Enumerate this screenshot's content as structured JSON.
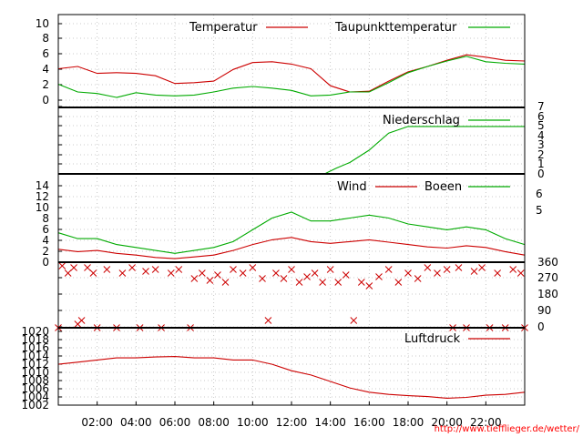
{
  "chart_data": [
    {
      "type": "line",
      "legend": [
        "Temperatur",
        "Taupunkttemperatur"
      ],
      "y_ticks": [
        "0",
        "2",
        "4",
        "6",
        "8",
        "10"
      ],
      "ylim": [
        -1,
        11
      ],
      "x": [
        0,
        1,
        2,
        3,
        4,
        5,
        6,
        7,
        8,
        9,
        10,
        11,
        12,
        13,
        14,
        15,
        16,
        17,
        18,
        19,
        20,
        21,
        22,
        23,
        24
      ],
      "series": [
        {
          "name": "Temperatur",
          "color": "#cc0000",
          "values": [
            4.0,
            4.3,
            3.4,
            3.5,
            3.4,
            3.1,
            2.1,
            2.2,
            2.4,
            3.9,
            4.8,
            4.9,
            4.6,
            4.0,
            1.8,
            1.0,
            1.1,
            2.4,
            3.6,
            4.3,
            5.1,
            5.8,
            5.5,
            5.1,
            5.0
          ]
        },
        {
          "name": "Taupunkttemperatur",
          "color": "#00aa00",
          "values": [
            2.0,
            1.0,
            0.8,
            0.3,
            0.9,
            0.6,
            0.5,
            0.6,
            1.0,
            1.5,
            1.7,
            1.5,
            1.2,
            0.5,
            0.6,
            1.0,
            1.0,
            2.2,
            3.5,
            4.3,
            5.0,
            5.6,
            4.9,
            4.7,
            4.6
          ]
        }
      ]
    },
    {
      "type": "line",
      "legend": [
        "Niederschlag"
      ],
      "y_ticks": [
        "0",
        "1",
        "2",
        "3",
        "4",
        "5",
        "6",
        "7"
      ],
      "ylim": [
        0,
        7
      ],
      "x": [
        0,
        13.7,
        14.3,
        15.0,
        16.0,
        17.0,
        18.0,
        18.5,
        24
      ],
      "series": [
        {
          "name": "Niederschlag",
          "color": "#00aa00",
          "values": [
            0,
            0,
            0.6,
            1.2,
            2.5,
            4.3,
            5.0,
            5.0,
            5.0
          ]
        }
      ]
    },
    {
      "type": "line",
      "legend": [
        "Wind",
        "Boeen"
      ],
      "y_ticks": [
        "0",
        "2",
        "4",
        "6",
        "8",
        "10",
        "12",
        "14"
      ],
      "y_ticks_right": [
        "5",
        "6"
      ],
      "ylim": [
        0,
        15
      ],
      "x": [
        0,
        1,
        2,
        3,
        4,
        5,
        6,
        7,
        8,
        9,
        10,
        11,
        12,
        13,
        14,
        15,
        16,
        17,
        18,
        19,
        20,
        21,
        22,
        23,
        24
      ],
      "series": [
        {
          "name": "Wind",
          "color": "#cc0000",
          "values": [
            2.2,
            1.8,
            2.0,
            1.5,
            1.2,
            0.8,
            0.6,
            0.9,
            1.2,
            2.0,
            3.0,
            3.8,
            4.2,
            3.5,
            3.2,
            3.5,
            3.8,
            3.4,
            3.0,
            2.6,
            2.4,
            2.8,
            2.5,
            1.8,
            1.2
          ]
        },
        {
          "name": "Boeen",
          "color": "#00aa00",
          "values": [
            5.0,
            4.0,
            4.0,
            3.0,
            2.5,
            2.0,
            1.5,
            2.0,
            2.5,
            3.5,
            5.5,
            7.5,
            8.5,
            7.0,
            7.0,
            7.5,
            8.0,
            7.5,
            6.5,
            6.0,
            5.5,
            6.0,
            5.5,
            4.0,
            3.0
          ]
        }
      ]
    },
    {
      "type": "scatter",
      "y_ticks": [
        "0",
        "90",
        "180",
        "270",
        "360"
      ],
      "ylim": [
        0,
        360
      ],
      "color": "#cc0000",
      "points": [
        {
          "x": 0.0,
          "y": 0
        },
        {
          "x": 0.2,
          "y": 340
        },
        {
          "x": 0.5,
          "y": 300
        },
        {
          "x": 0.8,
          "y": 330
        },
        {
          "x": 1.0,
          "y": 20
        },
        {
          "x": 1.2,
          "y": 40
        },
        {
          "x": 1.5,
          "y": 330
        },
        {
          "x": 1.8,
          "y": 300
        },
        {
          "x": 2.0,
          "y": 0
        },
        {
          "x": 2.5,
          "y": 320
        },
        {
          "x": 3.0,
          "y": 0
        },
        {
          "x": 3.3,
          "y": 300
        },
        {
          "x": 3.8,
          "y": 330
        },
        {
          "x": 4.2,
          "y": 0
        },
        {
          "x": 4.5,
          "y": 310
        },
        {
          "x": 5.0,
          "y": 320
        },
        {
          "x": 5.3,
          "y": 0
        },
        {
          "x": 5.8,
          "y": 300
        },
        {
          "x": 6.2,
          "y": 320
        },
        {
          "x": 6.8,
          "y": 0
        },
        {
          "x": 7.0,
          "y": 270
        },
        {
          "x": 7.4,
          "y": 300
        },
        {
          "x": 7.8,
          "y": 260
        },
        {
          "x": 8.2,
          "y": 290
        },
        {
          "x": 8.6,
          "y": 250
        },
        {
          "x": 9.0,
          "y": 320
        },
        {
          "x": 9.5,
          "y": 300
        },
        {
          "x": 10.0,
          "y": 330
        },
        {
          "x": 10.5,
          "y": 270
        },
        {
          "x": 10.8,
          "y": 40
        },
        {
          "x": 11.2,
          "y": 300
        },
        {
          "x": 11.6,
          "y": 270
        },
        {
          "x": 12.0,
          "y": 320
        },
        {
          "x": 12.4,
          "y": 250
        },
        {
          "x": 12.8,
          "y": 280
        },
        {
          "x": 13.2,
          "y": 300
        },
        {
          "x": 13.6,
          "y": 250
        },
        {
          "x": 14.0,
          "y": 320
        },
        {
          "x": 14.4,
          "y": 250
        },
        {
          "x": 14.8,
          "y": 290
        },
        {
          "x": 15.2,
          "y": 40
        },
        {
          "x": 15.6,
          "y": 250
        },
        {
          "x": 16.0,
          "y": 230
        },
        {
          "x": 16.5,
          "y": 280
        },
        {
          "x": 17.0,
          "y": 320
        },
        {
          "x": 17.5,
          "y": 250
        },
        {
          "x": 18.0,
          "y": 300
        },
        {
          "x": 18.5,
          "y": 270
        },
        {
          "x": 19.0,
          "y": 330
        },
        {
          "x": 19.5,
          "y": 300
        },
        {
          "x": 20.0,
          "y": 320
        },
        {
          "x": 20.3,
          "y": 0
        },
        {
          "x": 20.6,
          "y": 330
        },
        {
          "x": 21.0,
          "y": 0
        },
        {
          "x": 21.4,
          "y": 310
        },
        {
          "x": 21.8,
          "y": 330
        },
        {
          "x": 22.2,
          "y": 0
        },
        {
          "x": 22.6,
          "y": 300
        },
        {
          "x": 23.0,
          "y": 0
        },
        {
          "x": 23.4,
          "y": 320
        },
        {
          "x": 23.8,
          "y": 300
        },
        {
          "x": 24.0,
          "y": 0
        }
      ]
    },
    {
      "type": "line",
      "legend": [
        "Luftdruck"
      ],
      "y_ticks": [
        "1002",
        "1004",
        "1006",
        "1008",
        "1010",
        "1012",
        "1014",
        "1016",
        "1018",
        "1020"
      ],
      "ylim": [
        1002,
        1020
      ],
      "x": [
        0,
        1,
        2,
        3,
        4,
        5,
        6,
        7,
        8,
        9,
        10,
        11,
        12,
        13,
        14,
        15,
        16,
        17,
        18,
        19,
        20,
        21,
        22,
        23,
        24
      ],
      "series": [
        {
          "name": "Luftdruck",
          "color": "#cc0000",
          "values": [
            1011.5,
            1012.0,
            1012.5,
            1013.0,
            1013.0,
            1013.2,
            1013.3,
            1013.0,
            1013.0,
            1012.5,
            1012.5,
            1011.5,
            1010.0,
            1009.0,
            1007.5,
            1006.0,
            1005.0,
            1004.5,
            1004.2,
            1004.0,
            1003.6,
            1003.8,
            1004.3,
            1004.5,
            1005.0
          ]
        }
      ]
    }
  ],
  "x_ticks": [
    {
      "hour": 2,
      "label": "02:00"
    },
    {
      "hour": 4,
      "label": "04:00"
    },
    {
      "hour": 6,
      "label": "06:00"
    },
    {
      "hour": 8,
      "label": "08:00"
    },
    {
      "hour": 10,
      "label": "10:00"
    },
    {
      "hour": 12,
      "label": "12:00"
    },
    {
      "hour": 14,
      "label": "14:00"
    },
    {
      "hour": 16,
      "label": "16:00"
    },
    {
      "hour": 18,
      "label": "18:00"
    },
    {
      "hour": 20,
      "label": "20:00"
    },
    {
      "hour": 22,
      "label": "22:00"
    }
  ],
  "credit": "http://www.tiefflieger.de/wetter/"
}
